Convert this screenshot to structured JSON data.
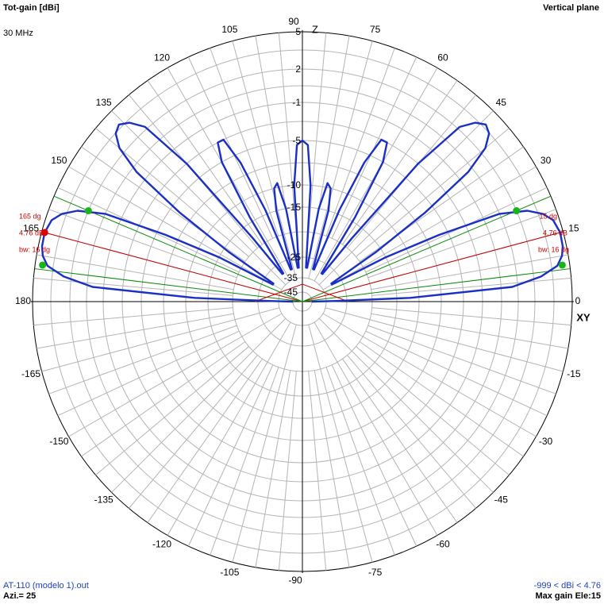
{
  "header": {
    "title": "Tot-gain [dBi]",
    "frequency": "30 MHz",
    "plane": "Vertical plane"
  },
  "footer": {
    "file": "AT-110 (modelo 1).out",
    "azimuth": "Azi.= 25",
    "range": "-999 < dBi < 4.76",
    "max_gain": "Max gain Ele:15"
  },
  "axes": {
    "top": "Z",
    "right": "XY"
  },
  "colors": {
    "pattern": "#1a2fc4",
    "beam_lines": "#0a8a0a",
    "max_lines": "#c80000",
    "grid": "#b4b4b4",
    "axis": "#000000"
  },
  "chart_data": {
    "type": "polar",
    "title": "Tot-gain [dBi]",
    "angle_unit": "deg",
    "angle_labels": [
      "0",
      "15",
      "30",
      "45",
      "60",
      "75",
      "90",
      "105",
      "120",
      "135",
      "150",
      "165",
      "180",
      "-165",
      "-150",
      "-135",
      "-120",
      "-105",
      "-90",
      "-75",
      "-60",
      "-45",
      "-30",
      "-15"
    ],
    "radial_labels": [
      "5",
      "2",
      "-1",
      "-5",
      "-10",
      "-15",
      "-25",
      "-35",
      "-45"
    ],
    "radial_values": [
      5,
      2,
      -1,
      -5,
      -10,
      -15,
      -25,
      -35,
      -45
    ],
    "max_gain_dbi": 4.76,
    "max_gain_elevation_deg": 15,
    "beamwidth_deg": 16,
    "markers": {
      "right": {
        "angle": "15 dg",
        "gain": "4.76 dB",
        "bw": "bw: 16 dg"
      },
      "left": {
        "angle": "165 dg",
        "gain": "4.76 dB",
        "bw": "bw: 16 dg"
      }
    },
    "series": [
      {
        "elevation_deg": [
          0,
          1,
          2,
          4,
          6,
          8,
          10,
          12,
          15,
          18,
          20,
          22,
          24,
          26,
          28,
          30,
          32,
          34,
          36,
          38,
          40,
          42,
          44,
          46,
          48,
          50,
          52,
          54,
          56,
          58,
          60,
          62,
          64,
          66,
          68,
          70,
          72,
          74,
          76,
          78,
          80,
          82,
          84,
          86,
          88,
          90
        ],
        "gain_dbi": [
          -45,
          -30,
          -12,
          0,
          2.6,
          4.0,
          4.5,
          4.7,
          4.76,
          4.5,
          3.9,
          2.8,
          0.5,
          -6,
          -15,
          -30,
          -30,
          -16,
          -6,
          0,
          2.5,
          3.5,
          3.8,
          3.3,
          2.2,
          -3,
          -18,
          -30,
          -30,
          -14,
          -5,
          -3,
          -3,
          -6,
          -14,
          -30,
          -30,
          -15,
          -10,
          -9.5,
          -15,
          -30,
          -30,
          -10,
          -5.5,
          -5
        ]
      }
    ]
  }
}
